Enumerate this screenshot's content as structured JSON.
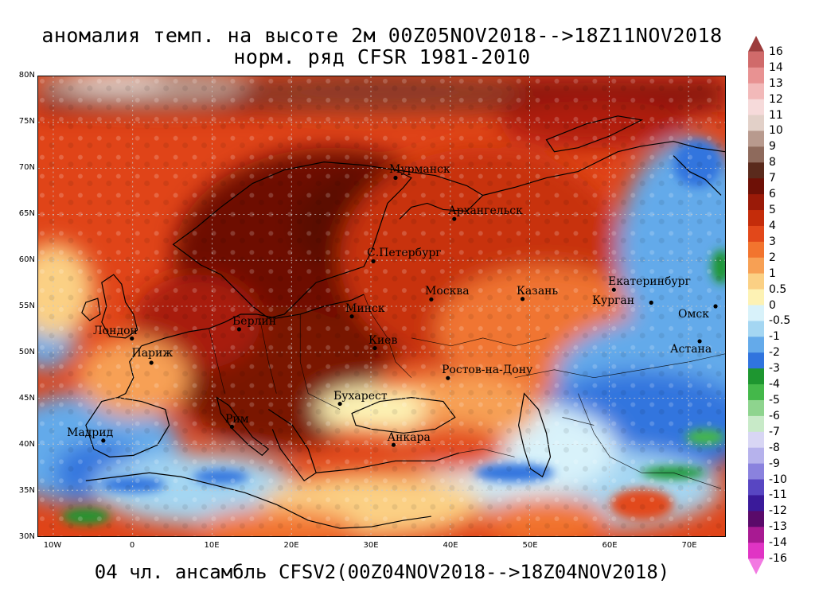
{
  "title_line1": "аномалия темп. на высоте 2м 00Z05NOV2018-->18Z11NOV2018",
  "title_line2": "норм. ряд CFSR 1981-2010",
  "footer": "04 чл. ансамбль CFSV2(00Z04NOV2018-->18Z04NOV2018)",
  "lat_labels": [
    "80N",
    "75N",
    "70N",
    "65N",
    "60N",
    "55N",
    "50N",
    "45N",
    "40N",
    "35N",
    "30N"
  ],
  "lon_labels": [
    "10W",
    "0",
    "10E",
    "20E",
    "30E",
    "40E",
    "50E",
    "60E",
    "70E"
  ],
  "cities": [
    {
      "name": "Мурманск",
      "lon": 33.1,
      "lat": 68.97
    },
    {
      "name": "Архангельск",
      "lon": 40.5,
      "lat": 64.5
    },
    {
      "name": "С.Петербург",
      "lon": 30.3,
      "lat": 59.9
    },
    {
      "name": "Москва",
      "lon": 37.6,
      "lat": 55.75
    },
    {
      "name": "Казань",
      "lon": 49.1,
      "lat": 55.8
    },
    {
      "name": "Екатеринбург",
      "lon": 60.6,
      "lat": 56.8
    },
    {
      "name": "Курган",
      "lon": 65.3,
      "lat": 55.4
    },
    {
      "name": "Омск",
      "lon": 73.4,
      "lat": 55.0
    },
    {
      "name": "Астана",
      "lon": 71.4,
      "lat": 51.2
    },
    {
      "name": "Минск",
      "lon": 27.6,
      "lat": 53.9
    },
    {
      "name": "Берлин",
      "lon": 13.4,
      "lat": 52.5
    },
    {
      "name": "Лондон",
      "lon": -0.1,
      "lat": 51.5
    },
    {
      "name": "Париж",
      "lon": 2.35,
      "lat": 48.86
    },
    {
      "name": "Киев",
      "lon": 30.5,
      "lat": 50.45
    },
    {
      "name": "Ростов-на-Дону",
      "lon": 39.7,
      "lat": 47.2
    },
    {
      "name": "Бухарест",
      "lon": 26.1,
      "lat": 44.4
    },
    {
      "name": "Рим",
      "lon": 12.5,
      "lat": 41.9
    },
    {
      "name": "Мадрид",
      "lon": -3.7,
      "lat": 40.4
    },
    {
      "name": "Анкара",
      "lon": 32.85,
      "lat": 39.93
    }
  ],
  "colorbar": {
    "labels": [
      "16",
      "14",
      "13",
      "12",
      "11",
      "10",
      "9",
      "8",
      "7",
      "6",
      "5",
      "4",
      "3",
      "2",
      "1",
      "0.5",
      "0",
      "-0.5",
      "-1",
      "-2",
      "-3",
      "-4",
      "-5",
      "-6",
      "-7",
      "-8",
      "-9",
      "-10",
      "-11",
      "-12",
      "-13",
      "-14",
      "-16"
    ],
    "colors": [
      "#9c3c3c",
      "#d06a6a",
      "#e89292",
      "#f2b9b9",
      "#f6dada",
      "#e2d0c8",
      "#b89a8e",
      "#8e6a5c",
      "#5a2a1c",
      "#6e1006",
      "#9a1a08",
      "#c42c0a",
      "#e2481a",
      "#f2742e",
      "#f7a054",
      "#fbd084",
      "#fdf2b4",
      "#d8f2fa",
      "#a4d6f2",
      "#64aaea",
      "#3074de",
      "#1e9630",
      "#44b84a",
      "#8ed48e",
      "#c8eac8",
      "#d8d6f4",
      "#b6b2ec",
      "#8a82de",
      "#5846c2",
      "#3a1a9a",
      "#5a0a6a",
      "#a81a92",
      "#e034c4",
      "#f27ae2"
    ]
  }
}
